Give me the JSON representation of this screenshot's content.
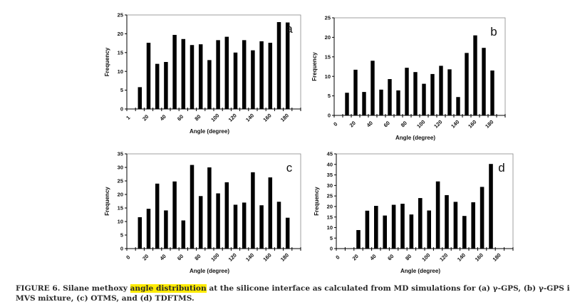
{
  "figure": {
    "caption_lines": [
      {
        "before": "FIGURE 6. Silane methoxy ",
        "highlight": "angle distribution",
        "after": " at the silicone interface as calculated from MD simulations for (a) γ-GPS, (b) γ-GPS in the"
      },
      {
        "before": "MVS mixture, (c) OTMS, and (d) TDFTMS.",
        "highlight": "",
        "after": ""
      }
    ],
    "highlight_color": "#ffeb00"
  },
  "chart_data": [
    {
      "type": "bar",
      "panel": "a",
      "title": "",
      "xlabel": "Angle (degree)",
      "ylabel": "Frequency",
      "ylim": [
        0,
        25
      ],
      "yticks": [
        0,
        5,
        10,
        15,
        20,
        25
      ],
      "xtick_labels": [
        "1",
        "20",
        "40",
        "60",
        "80",
        "100",
        "120",
        "140",
        "160",
        "180"
      ],
      "categories": [
        5,
        15,
        25,
        35,
        45,
        55,
        65,
        75,
        85,
        95,
        105,
        115,
        125,
        135,
        145,
        155,
        165,
        175,
        185
      ],
      "values": [
        0,
        5.8,
        17.6,
        12.0,
        12.5,
        19.7,
        18.6,
        17.0,
        17.2,
        13.0,
        18.3,
        19.2,
        15.0,
        18.3,
        15.6,
        18.0,
        17.6,
        23.1,
        23.0
      ],
      "bar_color": "#000000",
      "grid": false
    },
    {
      "type": "bar",
      "panel": "b",
      "title": "",
      "xlabel": "Angle (degree)",
      "ylabel": "Frequency",
      "ylim": [
        0,
        25
      ],
      "yticks": [
        0,
        5,
        10,
        15,
        20,
        25
      ],
      "xtick_labels": [
        "0",
        "20",
        "40",
        "60",
        "80",
        "100",
        "120",
        "140",
        "160",
        "180"
      ],
      "categories": [
        5,
        15,
        25,
        35,
        45,
        55,
        65,
        75,
        85,
        95,
        105,
        115,
        125,
        135,
        145,
        155,
        165,
        175,
        185
      ],
      "values": [
        0,
        5.8,
        11.7,
        6.0,
        14.0,
        6.6,
        9.3,
        6.4,
        12.2,
        11.1,
        8.1,
        10.6,
        12.7,
        11.8,
        4.7,
        16.0,
        20.5,
        17.3,
        11.5
      ],
      "bar_color": "#000000",
      "grid": false
    },
    {
      "type": "bar",
      "panel": "c",
      "title": "",
      "xlabel": "Angle (degree)",
      "ylabel": "Frequency",
      "ylim": [
        0,
        35
      ],
      "yticks": [
        0,
        5,
        10,
        15,
        20,
        25,
        30,
        35
      ],
      "xtick_labels": [
        "0",
        "20",
        "40",
        "60",
        "80",
        "100",
        "120",
        "140",
        "160",
        "180"
      ],
      "categories": [
        5,
        15,
        25,
        35,
        45,
        55,
        65,
        75,
        85,
        95,
        105,
        115,
        125,
        135,
        145,
        155,
        165,
        175,
        185
      ],
      "values": [
        0,
        11.6,
        14.7,
        24.0,
        14.1,
        24.8,
        10.4,
        30.9,
        19.4,
        30.0,
        20.4,
        24.5,
        16.2,
        17.0,
        28.2,
        16.0,
        26.3,
        17.3,
        11.4
      ],
      "bar_color": "#000000",
      "grid": false
    },
    {
      "type": "bar",
      "panel": "d",
      "title": "",
      "xlabel": "Angle (degree)",
      "ylabel": "Frequency",
      "ylim": [
        0,
        45
      ],
      "yticks": [
        0,
        5,
        10,
        15,
        20,
        25,
        30,
        35,
        40,
        45
      ],
      "xtick_labels": [
        "0",
        "20",
        "40",
        "60",
        "80",
        "100",
        "120",
        "140",
        "160",
        "180"
      ],
      "categories": [
        5,
        15,
        25,
        35,
        45,
        55,
        65,
        75,
        85,
        95,
        105,
        115,
        125,
        135,
        145,
        155,
        165,
        175,
        185
      ],
      "values": [
        0,
        0,
        8.8,
        18.0,
        20.3,
        15.7,
        20.8,
        21.3,
        16.2,
        24.0,
        18.1,
        31.9,
        25.4,
        22.2,
        15.5,
        22.0,
        29.3,
        40.2,
        0
      ],
      "bar_color": "#000000",
      "grid": false
    }
  ]
}
